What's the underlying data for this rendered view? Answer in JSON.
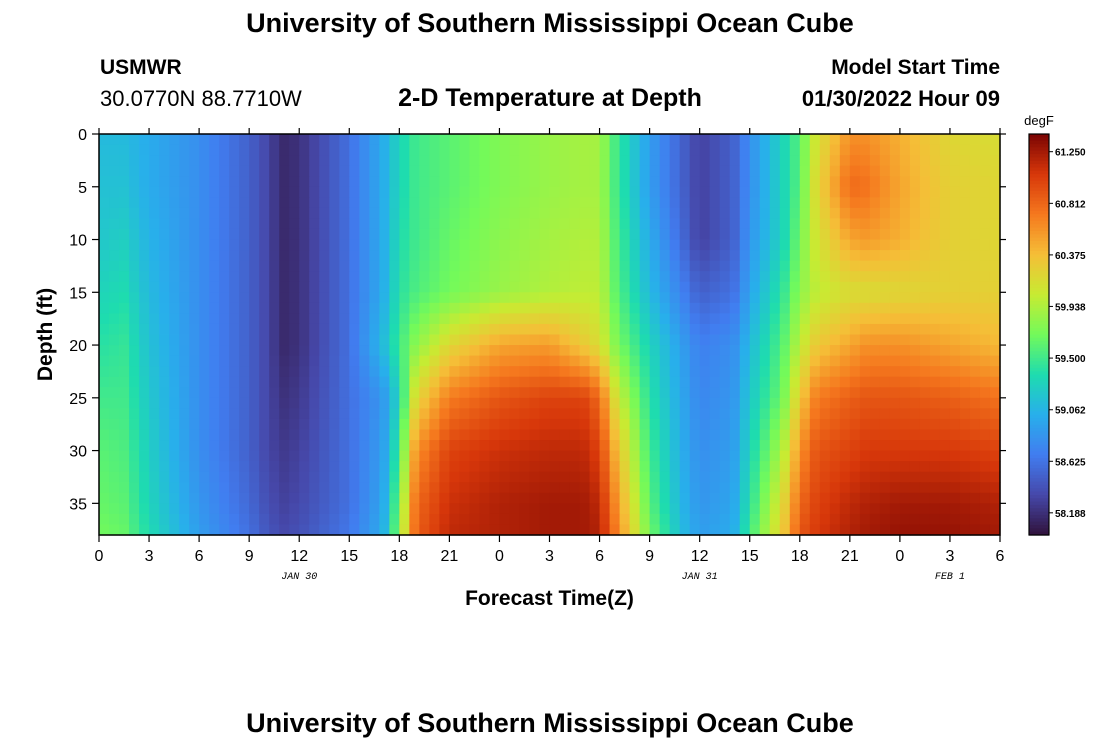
{
  "header": {
    "title": "University of Southern Mississippi Ocean Cube",
    "station": "USMWR",
    "coords": "30.0770N  88.7710W",
    "subtitle": "2-D Temperature at Depth",
    "start_label": "Model Start Time",
    "start_value": "01/30/2022 Hour 09",
    "footer_title": "University of Southern Mississippi Ocean Cube"
  },
  "chart_data": {
    "type": "heatmap",
    "title": "2-D Temperature at Depth",
    "xlabel": "Forecast Time(Z)",
    "ylabel": "Depth (ft)",
    "x_ticks": [
      "0",
      "3",
      "6",
      "9",
      "12",
      "15",
      "18",
      "21",
      "0",
      "3",
      "6",
      "9",
      "12",
      "15",
      "18",
      "21",
      "0",
      "3",
      "6"
    ],
    "x_hours": [
      0,
      3,
      6,
      9,
      12,
      15,
      18,
      21,
      24,
      27,
      30,
      33,
      36,
      39,
      42,
      45,
      48,
      51,
      54
    ],
    "xlim_hours": [
      0,
      54
    ],
    "date_labels": [
      {
        "label": "JAN 30",
        "hour": 12
      },
      {
        "label": "JAN 31",
        "hour": 36
      },
      {
        "label": "FEB 1",
        "hour": 51
      }
    ],
    "y_ticks": [
      "0",
      "5",
      "10",
      "15",
      "20",
      "25",
      "30",
      "35"
    ],
    "y_values": [
      0,
      5,
      10,
      15,
      20,
      25,
      30,
      35
    ],
    "ylim": [
      0,
      38
    ],
    "y_inverted": true,
    "colorbar": {
      "unit": "degF",
      "tick_labels": [
        "61.250",
        "60.812",
        "60.375",
        "59.938",
        "59.500",
        "59.062",
        "58.625",
        "58.188"
      ],
      "range": [
        58.0,
        61.4
      ],
      "colormap": "turbo"
    },
    "depths": [
      0,
      5,
      10,
      15,
      20,
      25,
      30,
      35,
      38
    ],
    "time_hours": [
      0,
      1.5,
      3,
      6,
      9,
      10,
      11,
      12,
      15,
      17,
      18,
      19,
      21,
      24,
      27,
      29,
      30,
      31,
      33,
      35,
      36,
      38,
      39,
      41,
      42,
      43,
      45,
      46,
      48,
      51,
      54
    ],
    "values": [
      [
        59.1,
        59.1,
        59.0,
        58.8,
        58.5,
        58.35,
        58.15,
        58.2,
        58.6,
        59.0,
        59.3,
        59.5,
        59.6,
        59.75,
        59.85,
        59.9,
        59.9,
        59.5,
        58.9,
        58.5,
        58.3,
        58.5,
        58.8,
        59.3,
        59.6,
        60.1,
        60.6,
        60.6,
        60.45,
        60.2,
        60.15
      ],
      [
        59.15,
        59.15,
        59.0,
        58.8,
        58.5,
        58.35,
        58.15,
        58.2,
        58.6,
        59.0,
        59.3,
        59.5,
        59.6,
        59.75,
        59.85,
        59.9,
        59.9,
        59.5,
        58.9,
        58.5,
        58.3,
        58.5,
        58.8,
        59.3,
        59.6,
        60.2,
        60.8,
        60.75,
        60.5,
        60.25,
        60.2
      ],
      [
        59.2,
        59.25,
        59.05,
        58.8,
        58.5,
        58.35,
        58.15,
        58.2,
        58.6,
        59.0,
        59.35,
        59.5,
        59.65,
        59.8,
        59.9,
        59.95,
        59.95,
        59.55,
        59.0,
        58.55,
        58.3,
        58.5,
        58.85,
        59.3,
        59.7,
        60.1,
        60.5,
        60.55,
        60.45,
        60.25,
        60.2
      ],
      [
        59.3,
        59.35,
        59.1,
        58.8,
        58.5,
        58.35,
        58.15,
        58.2,
        58.6,
        59.0,
        59.4,
        59.55,
        59.7,
        59.85,
        59.95,
        60.0,
        60.0,
        59.6,
        59.1,
        58.7,
        58.5,
        58.6,
        58.95,
        59.45,
        59.8,
        60.0,
        60.15,
        60.15,
        60.2,
        60.25,
        60.25
      ],
      [
        59.4,
        59.45,
        59.15,
        58.8,
        58.5,
        58.35,
        58.15,
        58.2,
        58.6,
        59.1,
        59.5,
        59.8,
        60.2,
        60.5,
        60.55,
        60.3,
        60.15,
        59.75,
        59.3,
        58.9,
        58.7,
        58.8,
        59.1,
        59.6,
        60.0,
        60.3,
        60.5,
        60.6,
        60.6,
        60.5,
        60.4
      ],
      [
        59.5,
        59.5,
        59.2,
        58.8,
        58.5,
        58.35,
        58.2,
        58.25,
        58.6,
        58.85,
        59.3,
        60.2,
        60.7,
        60.9,
        61.0,
        61.0,
        60.8,
        60.1,
        59.4,
        58.95,
        58.75,
        58.85,
        59.2,
        59.7,
        60.3,
        60.7,
        60.85,
        60.9,
        60.9,
        60.85,
        60.75
      ],
      [
        59.6,
        59.55,
        59.25,
        58.8,
        58.5,
        58.35,
        58.25,
        58.3,
        58.6,
        58.9,
        59.5,
        60.6,
        61.0,
        61.1,
        61.15,
        61.15,
        61.0,
        60.4,
        59.5,
        59.0,
        58.8,
        58.9,
        59.3,
        59.95,
        60.6,
        60.9,
        61.0,
        61.05,
        61.05,
        61.05,
        61.0
      ],
      [
        59.65,
        59.6,
        59.3,
        58.85,
        58.55,
        58.4,
        58.3,
        58.35,
        58.6,
        58.95,
        59.7,
        60.8,
        61.1,
        61.2,
        61.25,
        61.25,
        61.15,
        60.6,
        59.6,
        59.05,
        58.85,
        58.95,
        59.4,
        60.2,
        60.8,
        61.0,
        61.15,
        61.2,
        61.25,
        61.25,
        61.2
      ],
      [
        59.7,
        59.65,
        59.35,
        58.9,
        58.6,
        58.45,
        58.35,
        58.4,
        58.65,
        59.0,
        59.8,
        60.85,
        61.15,
        61.2,
        61.25,
        61.25,
        61.2,
        60.7,
        59.7,
        59.1,
        58.9,
        59.0,
        59.5,
        60.3,
        60.9,
        61.05,
        61.2,
        61.25,
        61.3,
        61.3,
        61.25
      ]
    ]
  }
}
